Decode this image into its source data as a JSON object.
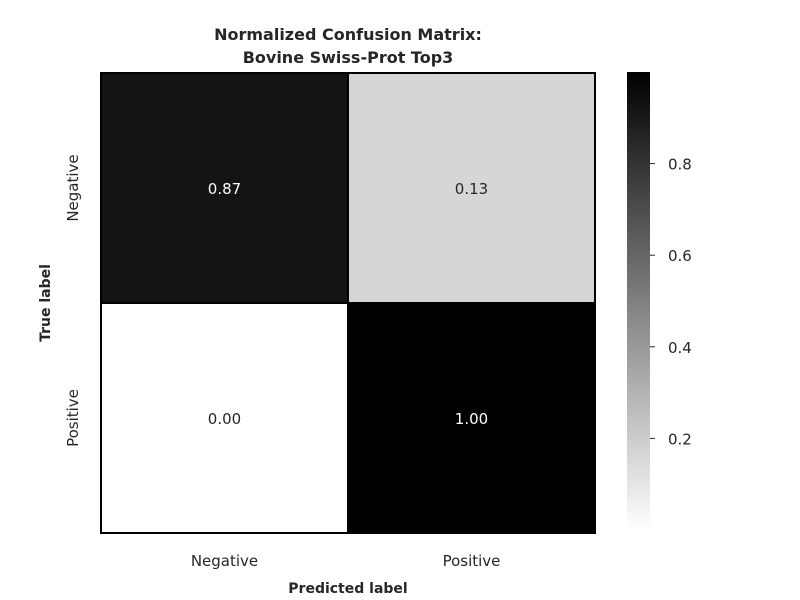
{
  "chart_data": {
    "type": "heatmap",
    "title": [
      "Normalized Confusion Matrix:",
      "Bovine Swiss-Prot Top3"
    ],
    "xlabel": "Predicted label",
    "ylabel": "True label",
    "x_categories": [
      "Negative",
      "Positive"
    ],
    "y_categories": [
      "Negative",
      "Positive"
    ],
    "values": [
      [
        0.87,
        0.13
      ],
      [
        0.0,
        1.0
      ]
    ],
    "cell_labels": [
      [
        "0.87",
        "0.13"
      ],
      [
        "0.00",
        "1.00"
      ]
    ],
    "colormap": "Greys",
    "color_range": [
      0.0,
      1.0
    ],
    "colorbar": {
      "ticks": [
        0.2,
        0.4,
        0.6,
        0.8
      ],
      "tick_labels": [
        "0.2",
        "0.4",
        "0.6",
        "0.8"
      ],
      "range": [
        0.0,
        1.0
      ]
    }
  }
}
